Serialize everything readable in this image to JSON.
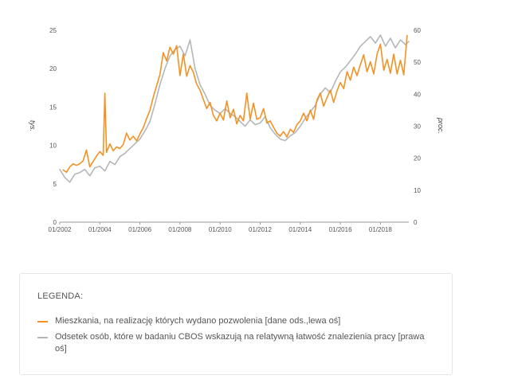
{
  "colors": {
    "orange": "#f39224",
    "gray": "#b3b7bb",
    "axis": "#999999",
    "text": "#555555"
  },
  "chart_data": {
    "type": "line",
    "x_tick_labels": [
      "01/2002",
      "01/2004",
      "01/2006",
      "01/2008",
      "01/2010",
      "01/2012",
      "01/2014",
      "01/2016",
      "01/2018"
    ],
    "xlim": [
      "2002-01",
      "2019-06"
    ],
    "left_axis": {
      "label": "tys.",
      "ylim": [
        0,
        25
      ],
      "ticks": [
        0,
        5,
        10,
        15,
        20,
        25
      ]
    },
    "right_axis": {
      "label": "proc.",
      "ylim": [
        0,
        60
      ],
      "ticks": [
        0,
        10,
        20,
        30,
        40,
        50,
        60
      ]
    },
    "series": [
      {
        "name": "Mieszkania, na realizację których wydano pozwolenia [dane ods.,lewa oś]",
        "axis": "left",
        "color": "#f39224",
        "points": [
          [
            "2002-03",
            6.8
          ],
          [
            "2002-05",
            6.5
          ],
          [
            "2002-07",
            7.2
          ],
          [
            "2002-09",
            7.6
          ],
          [
            "2002-11",
            7.4
          ],
          [
            "2003-01",
            7.6
          ],
          [
            "2003-03",
            8.0
          ],
          [
            "2003-05",
            9.4
          ],
          [
            "2003-07",
            7.2
          ],
          [
            "2003-09",
            7.9
          ],
          [
            "2003-11",
            8.6
          ],
          [
            "2004-01",
            9.2
          ],
          [
            "2004-03",
            8.7
          ],
          [
            "2004-04",
            16.8
          ],
          [
            "2004-05",
            9.1
          ],
          [
            "2004-07",
            10.2
          ],
          [
            "2004-09",
            9.3
          ],
          [
            "2004-11",
            9.8
          ],
          [
            "2005-01",
            9.6
          ],
          [
            "2005-03",
            10.1
          ],
          [
            "2005-05",
            11.6
          ],
          [
            "2005-07",
            10.7
          ],
          [
            "2005-09",
            11.2
          ],
          [
            "2005-11",
            10.6
          ],
          [
            "2006-01",
            11.5
          ],
          [
            "2006-03",
            12.3
          ],
          [
            "2006-05",
            13.5
          ],
          [
            "2006-07",
            14.6
          ],
          [
            "2006-09",
            16.3
          ],
          [
            "2006-11",
            17.8
          ],
          [
            "2007-01",
            19.2
          ],
          [
            "2007-03",
            22.1
          ],
          [
            "2007-05",
            21.0
          ],
          [
            "2007-07",
            22.8
          ],
          [
            "2007-09",
            21.9
          ],
          [
            "2007-11",
            23.0
          ],
          [
            "2008-01",
            19.1
          ],
          [
            "2008-03",
            21.9
          ],
          [
            "2008-05",
            19.0
          ],
          [
            "2008-07",
            20.4
          ],
          [
            "2008-09",
            19.5
          ],
          [
            "2008-11",
            18.0
          ],
          [
            "2009-01",
            17.2
          ],
          [
            "2009-03",
            16.0
          ],
          [
            "2009-05",
            14.8
          ],
          [
            "2009-07",
            15.6
          ],
          [
            "2009-09",
            13.9
          ],
          [
            "2009-11",
            13.2
          ],
          [
            "2010-01",
            14.2
          ],
          [
            "2010-03",
            13.3
          ],
          [
            "2010-05",
            15.8
          ],
          [
            "2010-07",
            13.6
          ],
          [
            "2010-09",
            14.7
          ],
          [
            "2010-11",
            12.8
          ],
          [
            "2011-01",
            13.9
          ],
          [
            "2011-03",
            13.2
          ],
          [
            "2011-05",
            16.8
          ],
          [
            "2011-07",
            13.4
          ],
          [
            "2011-09",
            15.5
          ],
          [
            "2011-11",
            13.4
          ],
          [
            "2012-01",
            13.6
          ],
          [
            "2012-03",
            14.8
          ],
          [
            "2012-05",
            12.9
          ],
          [
            "2012-07",
            13.2
          ],
          [
            "2012-09",
            12.4
          ],
          [
            "2012-11",
            11.6
          ],
          [
            "2013-01",
            11.2
          ],
          [
            "2013-03",
            11.8
          ],
          [
            "2013-05",
            11.1
          ],
          [
            "2013-07",
            12.1
          ],
          [
            "2013-09",
            11.7
          ],
          [
            "2013-11",
            12.7
          ],
          [
            "2014-01",
            13.2
          ],
          [
            "2014-03",
            14.2
          ],
          [
            "2014-05",
            13.2
          ],
          [
            "2014-07",
            14.6
          ],
          [
            "2014-09",
            13.4
          ],
          [
            "2014-11",
            15.9
          ],
          [
            "2015-01",
            16.8
          ],
          [
            "2015-03",
            15.1
          ],
          [
            "2015-05",
            16.2
          ],
          [
            "2015-07",
            17.2
          ],
          [
            "2015-09",
            15.6
          ],
          [
            "2015-11",
            17.1
          ],
          [
            "2016-01",
            18.2
          ],
          [
            "2016-03",
            17.4
          ],
          [
            "2016-05",
            19.6
          ],
          [
            "2016-07",
            18.5
          ],
          [
            "2016-09",
            20.2
          ],
          [
            "2016-11",
            19.1
          ],
          [
            "2017-01",
            20.5
          ],
          [
            "2017-03",
            21.8
          ],
          [
            "2017-05",
            19.6
          ],
          [
            "2017-07",
            20.9
          ],
          [
            "2017-09",
            19.3
          ],
          [
            "2017-11",
            21.9
          ],
          [
            "2018-01",
            23.2
          ],
          [
            "2018-03",
            19.8
          ],
          [
            "2018-05",
            21.2
          ],
          [
            "2018-07",
            19.4
          ],
          [
            "2018-09",
            21.9
          ],
          [
            "2018-11",
            19.3
          ],
          [
            "2019-01",
            21.1
          ],
          [
            "2019-03",
            19.2
          ],
          [
            "2019-05",
            24.3
          ]
        ]
      },
      {
        "name": "Odsetek osób, które w badaniu CBOS wskazują na relatywną łatwość znalezienia pracy [prawa oś]",
        "axis": "right",
        "color": "#b3b7bb",
        "points": [
          [
            "2002-01",
            16.5
          ],
          [
            "2002-04",
            14.0
          ],
          [
            "2002-07",
            12.5
          ],
          [
            "2002-10",
            15.0
          ],
          [
            "2003-01",
            15.5
          ],
          [
            "2003-04",
            16.5
          ],
          [
            "2003-07",
            14.5
          ],
          [
            "2003-10",
            17.0
          ],
          [
            "2004-01",
            17.5
          ],
          [
            "2004-04",
            16.0
          ],
          [
            "2004-07",
            19.0
          ],
          [
            "2004-10",
            18.0
          ],
          [
            "2005-01",
            20.5
          ],
          [
            "2005-04",
            21.5
          ],
          [
            "2005-07",
            23.0
          ],
          [
            "2005-10",
            24.5
          ],
          [
            "2006-01",
            26.0
          ],
          [
            "2006-04",
            28.5
          ],
          [
            "2006-07",
            31.5
          ],
          [
            "2006-10",
            37.0
          ],
          [
            "2007-01",
            43.0
          ],
          [
            "2007-04",
            48.0
          ],
          [
            "2007-07",
            52.0
          ],
          [
            "2007-10",
            54.0
          ],
          [
            "2008-01",
            55.0
          ],
          [
            "2008-04",
            52.0
          ],
          [
            "2008-07",
            57.0
          ],
          [
            "2008-10",
            48.0
          ],
          [
            "2009-01",
            43.0
          ],
          [
            "2009-04",
            40.0
          ],
          [
            "2009-07",
            36.5
          ],
          [
            "2009-10",
            35.0
          ],
          [
            "2010-01",
            34.0
          ],
          [
            "2010-04",
            35.5
          ],
          [
            "2010-07",
            34.0
          ],
          [
            "2010-10",
            33.0
          ],
          [
            "2011-01",
            31.5
          ],
          [
            "2011-04",
            30.0
          ],
          [
            "2011-07",
            32.0
          ],
          [
            "2011-10",
            30.5
          ],
          [
            "2012-01",
            31.0
          ],
          [
            "2012-04",
            33.0
          ],
          [
            "2012-07",
            29.5
          ],
          [
            "2012-10",
            27.5
          ],
          [
            "2013-01",
            26.0
          ],
          [
            "2013-04",
            25.5
          ],
          [
            "2013-07",
            27.0
          ],
          [
            "2013-10",
            28.0
          ],
          [
            "2014-01",
            30.0
          ],
          [
            "2014-04",
            32.5
          ],
          [
            "2014-07",
            34.5
          ],
          [
            "2014-10",
            36.5
          ],
          [
            "2015-01",
            40.0
          ],
          [
            "2015-04",
            42.0
          ],
          [
            "2015-07",
            40.5
          ],
          [
            "2015-10",
            44.0
          ],
          [
            "2016-01",
            47.0
          ],
          [
            "2016-04",
            48.5
          ],
          [
            "2016-07",
            50.5
          ],
          [
            "2016-10",
            52.5
          ],
          [
            "2017-01",
            55.0
          ],
          [
            "2017-04",
            56.5
          ],
          [
            "2017-07",
            58.0
          ],
          [
            "2017-10",
            56.0
          ],
          [
            "2018-01",
            58.5
          ],
          [
            "2018-04",
            55.0
          ],
          [
            "2018-07",
            57.5
          ],
          [
            "2018-10",
            54.5
          ],
          [
            "2019-01",
            57.0
          ],
          [
            "2019-04",
            55.5
          ],
          [
            "2019-06",
            56.5
          ]
        ]
      }
    ]
  },
  "legend": {
    "title": "LEGENDA:",
    "items": [
      {
        "label": "Mieszkania, na realizację których wydano pozwolenia [dane ods.,lewa oś]",
        "color": "#f39224"
      },
      {
        "label": "Odsetek osób, które w badaniu CBOS wskazują na relatywną łatwość znalezienia pracy [prawa oś]",
        "color": "#b3b7bb"
      }
    ]
  }
}
